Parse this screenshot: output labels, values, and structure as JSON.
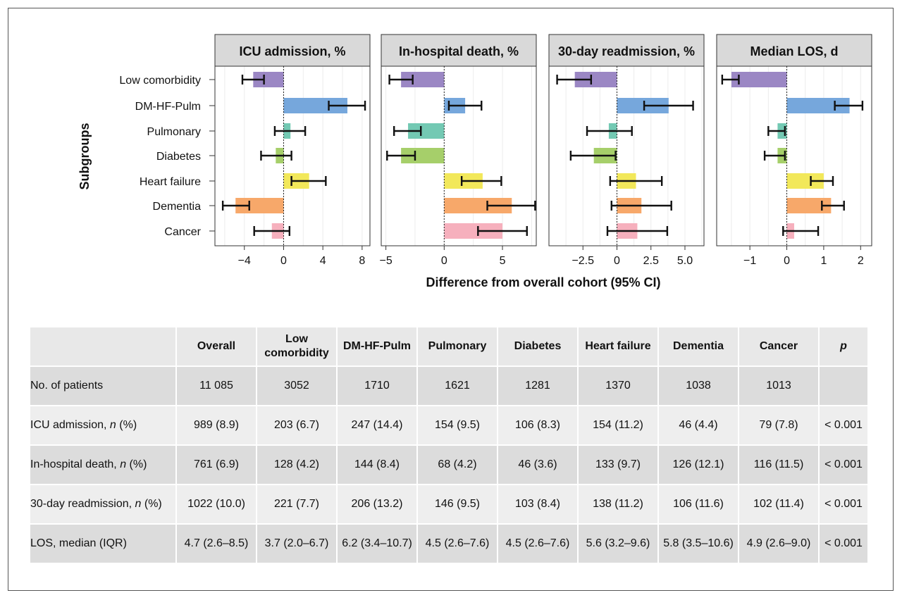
{
  "chart_data": {
    "type": "bar",
    "orientation": "horizontal",
    "y_axis_title": "Subgroups",
    "x_axis_title": "Difference from overall cohort (95% CI)",
    "categories": [
      "Low comorbidity",
      "DM-HF-Pulm",
      "Pulmonary",
      "Diabetes",
      "Heart failure",
      "Dementia",
      "Cancer"
    ],
    "category_colors": [
      "#9b87c4",
      "#76a7dc",
      "#73c9b3",
      "#a6cf6a",
      "#f2e85a",
      "#f7a86a",
      "#f6b0bd"
    ],
    "grid": true,
    "panels": [
      {
        "title": "ICU admission, %",
        "xlim": [
          -7,
          8.8
        ],
        "ticks": [
          -4,
          0,
          4,
          8
        ],
        "tick_labels": [
          "−4",
          "0",
          "4",
          "8"
        ],
        "values": [
          -3.1,
          6.5,
          0.7,
          -0.8,
          2.6,
          -4.9,
          -1.2
        ],
        "ci_low": [
          -4.2,
          4.6,
          -0.9,
          -2.3,
          0.8,
          -6.2,
          -3.0
        ],
        "ci_high": [
          -2.0,
          8.3,
          2.2,
          0.8,
          4.3,
          -3.5,
          0.6
        ]
      },
      {
        "title": "In-hospital death, %",
        "xlim": [
          -5.4,
          7.9
        ],
        "ticks": [
          -5,
          0,
          5
        ],
        "tick_labels": [
          "−5",
          "0",
          "5"
        ],
        "values": [
          -3.7,
          1.8,
          -3.1,
          -3.7,
          3.3,
          5.8,
          5.0
        ],
        "ci_low": [
          -4.7,
          0.4,
          -4.3,
          -4.9,
          1.5,
          3.7,
          2.9
        ],
        "ci_high": [
          -2.7,
          3.2,
          -2.0,
          -2.5,
          4.9,
          7.8,
          7.1
        ]
      },
      {
        "title": "30-day readmission, %",
        "xlim": [
          -5.0,
          6.4
        ],
        "ticks": [
          -2.5,
          0,
          2.5,
          5.0
        ],
        "tick_labels": [
          "−2.5",
          "0",
          "2.5",
          "5.0"
        ],
        "values": [
          -3.1,
          3.8,
          -0.6,
          -1.7,
          1.4,
          1.8,
          1.5
        ],
        "ci_low": [
          -4.4,
          2.0,
          -2.2,
          -3.4,
          -0.5,
          -0.4,
          -0.7
        ],
        "ci_high": [
          -1.9,
          5.6,
          1.1,
          -0.1,
          3.3,
          4.0,
          3.7
        ]
      },
      {
        "title": "Median LOS, d",
        "xlim": [
          -1.9,
          2.3
        ],
        "ticks": [
          -1,
          0,
          1,
          2
        ],
        "tick_labels": [
          "−1",
          "0",
          "1",
          "2"
        ],
        "values": [
          -1.5,
          1.7,
          -0.25,
          -0.25,
          1.0,
          1.2,
          0.2
        ],
        "ci_low": [
          -1.75,
          1.3,
          -0.5,
          -0.6,
          0.65,
          0.95,
          -0.1
        ],
        "ci_high": [
          -1.3,
          2.05,
          -0.05,
          -0.05,
          1.25,
          1.55,
          0.85
        ]
      }
    ]
  },
  "table": {
    "headers": [
      "",
      "Overall",
      "Low\ncomorbidity",
      "DM-HF-Pulm",
      "Pulmonary",
      "Diabetes",
      "Heart failure",
      "Dementia",
      "Cancer",
      "p"
    ],
    "rows": [
      {
        "label": "No. of patients",
        "label_italic": "",
        "label_suffix": "",
        "values": [
          "11 085",
          "3052",
          "1710",
          "1621",
          "1281",
          "1370",
          "1038",
          "1013",
          ""
        ]
      },
      {
        "label": "ICU admission, ",
        "label_italic": "n",
        "label_suffix": " (%)",
        "values": [
          "989 (8.9)",
          "203 (6.7)",
          "247 (14.4)",
          "154 (9.5)",
          "106 (8.3)",
          "154 (11.2)",
          "46 (4.4)",
          "79 (7.8)",
          "< 0.001"
        ]
      },
      {
        "label": "In-hospital death, ",
        "label_italic": "n",
        "label_suffix": " (%)",
        "values": [
          "761 (6.9)",
          "128 (4.2)",
          "144 (8.4)",
          "68 (4.2)",
          "46 (3.6)",
          "133 (9.7)",
          "126 (12.1)",
          "116 (11.5)",
          "< 0.001"
        ]
      },
      {
        "label": "30-day readmission, ",
        "label_italic": "n",
        "label_suffix": " (%)",
        "values": [
          "1022 (10.0)",
          "221 (7.7)",
          "206 (13.2)",
          "146 (9.5)",
          "103 (8.4)",
          "138 (11.2)",
          "106 (11.6)",
          "102 (11.4)",
          "< 0.001"
        ]
      },
      {
        "label": "LOS, median (IQR)",
        "label_italic": "",
        "label_suffix": "",
        "values": [
          "4.7 (2.6–8.5)",
          "3.7 (2.0–6.7)",
          "6.2 (3.4–10.7)",
          "4.5 (2.6–7.6)",
          "4.5 (2.6–7.6)",
          "5.6 (3.2–9.6)",
          "5.8 (3.5–10.6)",
          "4.9 (2.6–9.0)",
          "< 0.001"
        ]
      }
    ]
  }
}
